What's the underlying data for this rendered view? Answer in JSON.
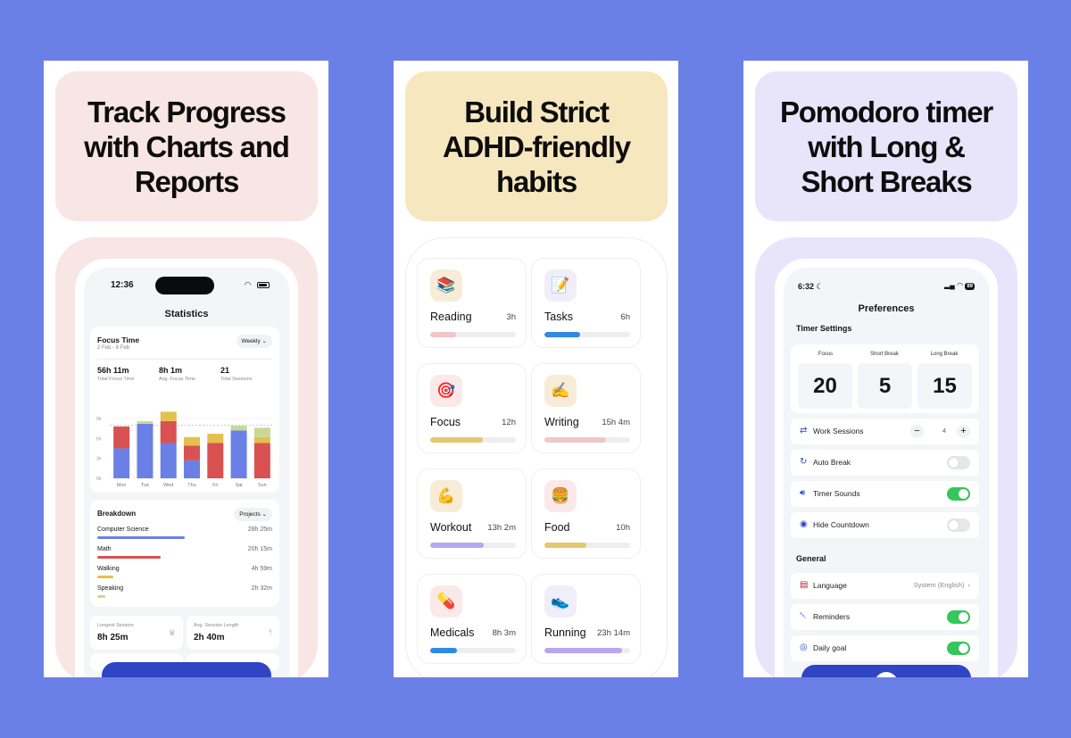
{
  "panels": [
    {
      "headline": "Track Progress\nwith Charts and\nReports"
    },
    {
      "headline": "Build Strict\nADHD-friendly\nhabits"
    },
    {
      "headline": "Pomodoro timer\nwith  Long &\nShort Breaks"
    }
  ],
  "stats_screen": {
    "status_time": "12:36",
    "title": "Statistics",
    "focus_title": "Focus Time",
    "date_range": "2 Feb - 8 Feb",
    "period_label": "Weekly",
    "stats": [
      {
        "value": "56h 11m",
        "label": "Total Focus Time"
      },
      {
        "value": "8h 1m",
        "label": "Avg. Focus Time"
      },
      {
        "value": "21",
        "label": "Total Sessions"
      }
    ],
    "breakdown_title": "Breakdown",
    "breakdown_filter": "Projects",
    "breakdown": [
      {
        "name": "Computer Science",
        "value": "28h 25m",
        "fraction": 0.5,
        "color": "#6b80e6"
      },
      {
        "name": "Math",
        "value": "20h 15m",
        "fraction": 0.36,
        "color": "#d95151"
      },
      {
        "name": "Walking",
        "value": "4h 59m",
        "fraction": 0.09,
        "color": "#e4c04f"
      },
      {
        "name": "Speaking",
        "value": "2h 32m",
        "fraction": 0.045,
        "color": "#c9d995"
      }
    ],
    "longest_label": "Longest Session",
    "longest_value": "8h 25m",
    "avg_label": "Avg. Session Length",
    "avg_value": "2h 40m"
  },
  "chart_data": {
    "type": "bar",
    "stacked": true,
    "categories": [
      "Mon",
      "Tue",
      "Wed",
      "Thu",
      "Fri",
      "Sat",
      "Sun"
    ],
    "y_ticks": [
      "0h",
      "3h",
      "6h",
      "9h"
    ],
    "ylim": [
      0,
      11
    ],
    "reference_line": 8,
    "series": [
      {
        "color": "#6b80e6",
        "values": [
          4.5,
          8.2,
          5.3,
          2.7,
          0,
          7.2,
          0
        ]
      },
      {
        "color": "#d95151",
        "values": [
          3.3,
          0,
          3.3,
          2.2,
          5.3,
          0,
          5.3
        ]
      },
      {
        "color": "#e4c04f",
        "values": [
          0,
          0,
          1.4,
          1.3,
          1.4,
          0,
          0.9
        ]
      },
      {
        "color": "#c9d995",
        "values": [
          0,
          0.4,
          0,
          0,
          0,
          0.7,
          1.4
        ]
      }
    ]
  },
  "habits": [
    {
      "name": "Reading",
      "duration": "3h",
      "icon": "books-icon",
      "emoji": "📚",
      "icon_bg": "#f8ecd9",
      "progress": 0.3,
      "color": "#f0c6c6"
    },
    {
      "name": "Tasks",
      "duration": "6h",
      "icon": "notepad-icon",
      "emoji": "📝",
      "icon_bg": "#f0eef8",
      "progress": 0.42,
      "color": "#2f8ae6"
    },
    {
      "name": "Focus",
      "duration": "12h",
      "icon": "target-icon",
      "emoji": "🎯",
      "icon_bg": "#fbe9e9",
      "progress": 0.61,
      "color": "#e4c770"
    },
    {
      "name": "Writing",
      "duration": "15h 4m",
      "icon": "writing-hand-icon",
      "emoji": "✍️",
      "icon_bg": "#f8ecd9",
      "progress": 0.72,
      "color": "#efc8c8"
    },
    {
      "name": "Workout",
      "duration": "13h 2m",
      "icon": "flexed-biceps-icon",
      "emoji": "💪",
      "icon_bg": "#f8ecd9",
      "progress": 0.63,
      "color": "#b9a6f3"
    },
    {
      "name": "Food",
      "duration": "10h",
      "icon": "burger-icon",
      "emoji": "🍔",
      "icon_bg": "#fbe9e9",
      "progress": 0.49,
      "color": "#e4c770"
    },
    {
      "name": "Medicals",
      "duration": "8h 3m",
      "icon": "pill-icon",
      "emoji": "💊",
      "icon_bg": "#fbe9e9",
      "progress": 0.31,
      "color": "#2f8ae6"
    },
    {
      "name": "Running",
      "duration": "23h 14m",
      "icon": "running-shoe-icon",
      "emoji": "👟",
      "icon_bg": "#f0eef8",
      "progress": 0.91,
      "color": "#b9a6f3"
    }
  ],
  "prefs_screen": {
    "status_time": "6:32",
    "battery": "89",
    "title": "Preferences",
    "timer_section": "Timer Settings",
    "timers": [
      {
        "label": "Focus",
        "value": "20"
      },
      {
        "label": "Short Break",
        "value": "5"
      },
      {
        "label": "Long Break",
        "value": "15"
      }
    ],
    "work_sessions_label": "Work Sessions",
    "work_sessions_value": "4",
    "auto_break_label": "Auto Break",
    "auto_break_on": false,
    "timer_sounds_label": "Timer Sounds",
    "timer_sounds_on": true,
    "hide_countdown_label": "Hide Countdown",
    "hide_countdown_on": false,
    "general_section": "General",
    "language_label": "Language",
    "language_value": "System (English)",
    "reminders_label": "Reminders",
    "reminders_on": true,
    "daily_goal_label": "Daily goal",
    "daily_goal_on": true
  }
}
